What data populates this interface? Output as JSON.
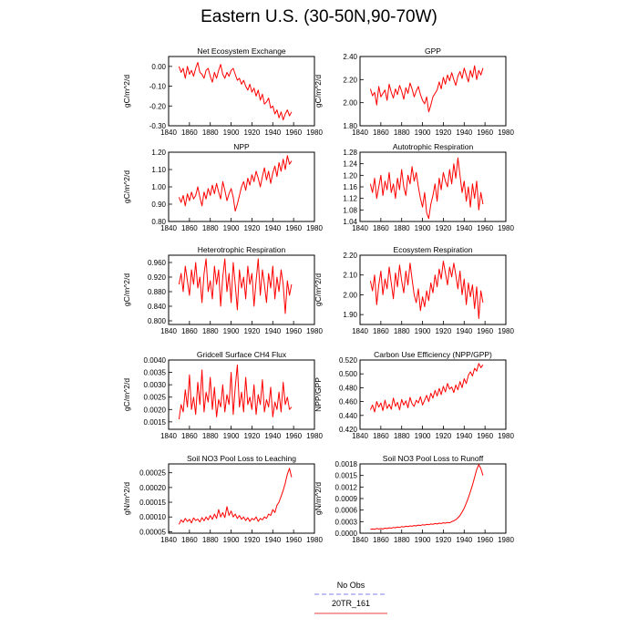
{
  "title": "Eastern U.S. (30-50N,90-70W)",
  "legend": {
    "entries": [
      {
        "label": "No Obs",
        "color": "#9999ee",
        "style": "dashed"
      },
      {
        "label": "20TR_161",
        "color": "#ee6666",
        "style": "solid"
      }
    ]
  },
  "colors": {
    "series": "#ff0000",
    "axis": "#000000"
  },
  "chart_data": [
    {
      "type": "line",
      "title": "Net Ecosystem Exchange",
      "ylabel": "gC/m^2/d",
      "xlabel": "",
      "xlim": [
        1840,
        1980
      ],
      "ylim": [
        -0.3,
        0.05
      ],
      "xticks": [
        1840,
        1860,
        1880,
        1900,
        1920,
        1940,
        1960,
        1980
      ],
      "yticks": [
        -0.3,
        -0.2,
        -0.1,
        0.0
      ],
      "ytick_labels": [
        "-0.30",
        "-0.20",
        "-0.10",
        "0.00"
      ],
      "series": [
        {
          "x_start": 1850,
          "x_step": 2,
          "values": [
            0.0,
            -0.03,
            -0.01,
            -0.06,
            0.0,
            -0.04,
            -0.02,
            -0.05,
            -0.01,
            0.02,
            -0.03,
            -0.04,
            -0.06,
            -0.02,
            -0.01,
            -0.05,
            -0.08,
            -0.03,
            -0.06,
            -0.02,
            0.01,
            -0.04,
            -0.06,
            -0.03,
            -0.05,
            -0.02,
            -0.01,
            -0.04,
            -0.07,
            -0.06,
            -0.09,
            -0.07,
            -0.1,
            -0.12,
            -0.09,
            -0.13,
            -0.11,
            -0.15,
            -0.12,
            -0.17,
            -0.14,
            -0.19,
            -0.18,
            -0.16,
            -0.21,
            -0.2,
            -0.24,
            -0.22,
            -0.26,
            -0.23,
            -0.27,
            -0.24,
            -0.22,
            -0.25,
            -0.23
          ]
        }
      ]
    },
    {
      "type": "line",
      "title": "GPP",
      "ylabel": "gC/m^2/d",
      "xlabel": "",
      "xlim": [
        1840,
        1980
      ],
      "ylim": [
        1.8,
        2.4
      ],
      "xticks": [
        1840,
        1860,
        1880,
        1900,
        1920,
        1940,
        1960,
        1980
      ],
      "yticks": [
        1.8,
        2.0,
        2.2,
        2.4
      ],
      "ytick_labels": [
        "1.80",
        "2.00",
        "2.20",
        "2.40"
      ],
      "series": [
        {
          "x_start": 1850,
          "x_step": 2,
          "values": [
            2.12,
            2.06,
            2.09,
            1.98,
            2.14,
            2.05,
            2.08,
            2.11,
            2.02,
            2.16,
            2.09,
            2.04,
            2.12,
            2.07,
            2.15,
            2.1,
            2.03,
            2.13,
            2.08,
            2.17,
            2.12,
            2.05,
            2.1,
            2.14,
            2.07,
            2.02,
            1.99,
            2.05,
            1.92,
            1.98,
            2.05,
            2.08,
            2.11,
            2.18,
            2.12,
            2.22,
            2.16,
            2.24,
            2.19,
            2.26,
            2.2,
            2.15,
            2.23,
            2.27,
            2.21,
            2.3,
            2.24,
            2.18,
            2.28,
            2.22,
            2.32,
            2.2,
            2.28,
            2.24,
            2.3
          ]
        }
      ]
    },
    {
      "type": "line",
      "title": "NPP",
      "ylabel": "gC/m^2/d",
      "xlabel": "",
      "xlim": [
        1840,
        1980
      ],
      "ylim": [
        0.8,
        1.2
      ],
      "xticks": [
        1840,
        1860,
        1880,
        1900,
        1920,
        1940,
        1960,
        1980
      ],
      "yticks": [
        0.8,
        0.9,
        1.0,
        1.1,
        1.2
      ],
      "ytick_labels": [
        "0.80",
        "0.90",
        "1.00",
        "1.10",
        "1.20"
      ],
      "series": [
        {
          "x_start": 1850,
          "x_step": 2,
          "values": [
            0.94,
            0.91,
            0.95,
            0.89,
            0.96,
            0.92,
            0.97,
            0.93,
            0.95,
            1.0,
            0.94,
            0.89,
            0.97,
            0.93,
            0.99,
            0.95,
            1.01,
            0.96,
            1.02,
            0.97,
            0.93,
            1.03,
            0.98,
            0.92,
            0.96,
            0.99,
            0.94,
            0.86,
            0.9,
            0.95,
            1.0,
            1.03,
            0.98,
            1.05,
            1.01,
            1.07,
            1.03,
            1.09,
            1.05,
            1.0,
            1.06,
            1.11,
            1.04,
            1.09,
            1.02,
            1.08,
            1.12,
            1.06,
            1.14,
            1.09,
            1.16,
            1.1,
            1.18,
            1.13,
            1.15
          ]
        }
      ]
    },
    {
      "type": "line",
      "title": "Autotrophic Respiration",
      "ylabel": "",
      "xlabel": "",
      "xlim": [
        1840,
        1980
      ],
      "ylim": [
        1.04,
        1.28
      ],
      "xticks": [
        1840,
        1860,
        1880,
        1900,
        1920,
        1940,
        1960,
        1980
      ],
      "yticks": [
        1.04,
        1.08,
        1.12,
        1.16,
        1.2,
        1.24,
        1.28
      ],
      "ytick_labels": [
        "1.04",
        "1.08",
        "1.12",
        "1.16",
        "1.20",
        "1.24",
        "1.28"
      ],
      "series": [
        {
          "x_start": 1850,
          "x_step": 2,
          "values": [
            1.17,
            1.14,
            1.19,
            1.12,
            1.16,
            1.2,
            1.13,
            1.18,
            1.15,
            1.21,
            1.14,
            1.17,
            1.12,
            1.19,
            1.15,
            1.22,
            1.16,
            1.13,
            1.2,
            1.17,
            1.23,
            1.18,
            1.21,
            1.16,
            1.12,
            1.09,
            1.14,
            1.07,
            1.05,
            1.1,
            1.13,
            1.17,
            1.11,
            1.19,
            1.15,
            1.21,
            1.18,
            1.16,
            1.22,
            1.17,
            1.24,
            1.19,
            1.26,
            1.2,
            1.14,
            1.18,
            1.11,
            1.16,
            1.09,
            1.17,
            1.12,
            1.18,
            1.08,
            1.14,
            1.1
          ]
        }
      ]
    },
    {
      "type": "line",
      "title": "Heterotrophic Respiration",
      "ylabel": "gC/m^2/d",
      "xlabel": "",
      "xlim": [
        1840,
        1980
      ],
      "ylim": [
        0.79,
        0.98
      ],
      "xticks": [
        1840,
        1860,
        1880,
        1900,
        1920,
        1940,
        1960,
        1980
      ],
      "yticks": [
        0.8,
        0.84,
        0.88,
        0.92,
        0.96
      ],
      "ytick_labels": [
        "0.800",
        "0.840",
        "0.880",
        "0.920",
        "0.960"
      ],
      "series": [
        {
          "x_start": 1850,
          "x_step": 2,
          "values": [
            0.9,
            0.93,
            0.88,
            0.95,
            0.91,
            0.87,
            0.94,
            0.9,
            0.96,
            0.89,
            0.92,
            0.85,
            0.93,
            0.97,
            0.88,
            0.91,
            0.86,
            0.95,
            0.9,
            0.94,
            0.84,
            0.92,
            0.97,
            0.88,
            0.93,
            0.85,
            0.96,
            0.9,
            0.83,
            0.94,
            0.89,
            0.92,
            0.86,
            0.95,
            0.9,
            0.93,
            0.84,
            0.91,
            0.97,
            0.87,
            0.94,
            0.9,
            0.85,
            0.93,
            0.89,
            0.95,
            0.86,
            0.92,
            0.88,
            0.94,
            0.9,
            0.82,
            0.91,
            0.87,
            0.9
          ]
        }
      ]
    },
    {
      "type": "line",
      "title": "Ecosystem Respiration",
      "ylabel": "gC/m^2/d",
      "xlabel": "",
      "xlim": [
        1840,
        1980
      ],
      "ylim": [
        1.85,
        2.2
      ],
      "xticks": [
        1840,
        1860,
        1880,
        1900,
        1920,
        1940,
        1960,
        1980
      ],
      "yticks": [
        1.9,
        2.0,
        2.1,
        2.2
      ],
      "ytick_labels": [
        "1.90",
        "2.00",
        "2.10",
        "2.20"
      ],
      "series": [
        {
          "x_start": 1850,
          "x_step": 2,
          "values": [
            2.07,
            2.02,
            2.1,
            1.95,
            2.05,
            2.12,
            2.0,
            2.08,
            2.03,
            2.14,
            2.06,
            1.98,
            2.11,
            2.04,
            2.15,
            2.07,
            2.01,
            2.12,
            2.05,
            2.16,
            2.08,
            2.0,
            1.96,
            2.03,
            1.92,
            1.99,
            1.94,
            2.02,
            1.97,
            2.06,
            2.01,
            2.1,
            2.04,
            2.13,
            2.08,
            2.17,
            2.11,
            2.05,
            2.14,
            2.09,
            2.16,
            2.1,
            2.03,
            2.12,
            2.0,
            2.08,
            1.95,
            2.06,
            1.99,
            2.05,
            1.93,
            2.04,
            1.88,
            2.02,
            1.96
          ]
        }
      ]
    },
    {
      "type": "line",
      "title": "Gridcell Surface CH4 Flux",
      "ylabel": "gC/m^2/d",
      "xlabel": "",
      "xlim": [
        1840,
        1980
      ],
      "ylim": [
        0.0012,
        0.004
      ],
      "xticks": [
        1840,
        1860,
        1880,
        1900,
        1920,
        1940,
        1960,
        1980
      ],
      "yticks": [
        0.0015,
        0.002,
        0.0025,
        0.003,
        0.0035,
        0.004
      ],
      "ytick_labels": [
        "0.0015",
        "0.0020",
        "0.0025",
        "0.0030",
        "0.0035",
        "0.0040"
      ],
      "series": [
        {
          "x_start": 1850,
          "x_step": 2,
          "values": [
            0.0016,
            0.0022,
            0.0019,
            0.0028,
            0.0021,
            0.0034,
            0.002,
            0.0025,
            0.0018,
            0.0031,
            0.0022,
            0.0036,
            0.0019,
            0.0027,
            0.0023,
            0.0033,
            0.002,
            0.0029,
            0.0017,
            0.0024,
            0.0021,
            0.003,
            0.0019,
            0.0026,
            0.0022,
            0.0035,
            0.0018,
            0.0029,
            0.0038,
            0.0021,
            0.0027,
            0.0019,
            0.0033,
            0.0022,
            0.0025,
            0.002,
            0.003,
            0.0018,
            0.0026,
            0.0022,
            0.0032,
            0.0019,
            0.0024,
            0.0021,
            0.0029,
            0.0017,
            0.0023,
            0.002,
            0.0027,
            0.0019,
            0.0031,
            0.0022,
            0.0025,
            0.002,
            0.0021
          ]
        }
      ]
    },
    {
      "type": "line",
      "title": "Carbon Use Efficiency (NPP/GPP)",
      "ylabel": "NPP/GPP",
      "xlabel": "",
      "xlim": [
        1840,
        1980
      ],
      "ylim": [
        0.42,
        0.52
      ],
      "xticks": [
        1840,
        1860,
        1880,
        1900,
        1920,
        1940,
        1960,
        1980
      ],
      "yticks": [
        0.42,
        0.44,
        0.46,
        0.48,
        0.5,
        0.52
      ],
      "ytick_labels": [
        "0.420",
        "0.440",
        "0.460",
        "0.480",
        "0.500",
        "0.520"
      ],
      "series": [
        {
          "x_start": 1850,
          "x_step": 2,
          "values": [
            0.448,
            0.455,
            0.445,
            0.46,
            0.452,
            0.458,
            0.447,
            0.462,
            0.45,
            0.456,
            0.449,
            0.465,
            0.453,
            0.459,
            0.448,
            0.463,
            0.455,
            0.461,
            0.451,
            0.466,
            0.457,
            0.453,
            0.462,
            0.458,
            0.467,
            0.455,
            0.462,
            0.469,
            0.46,
            0.472,
            0.465,
            0.476,
            0.468,
            0.479,
            0.47,
            0.482,
            0.474,
            0.486,
            0.478,
            0.481,
            0.473,
            0.484,
            0.477,
            0.489,
            0.48,
            0.493,
            0.486,
            0.498,
            0.503,
            0.497,
            0.508,
            0.504,
            0.515,
            0.509,
            0.513
          ]
        }
      ]
    },
    {
      "type": "line",
      "title": "Soil NO3 Pool Loss to Leaching",
      "ylabel": "gN/m^2/d",
      "xlabel": "",
      "xlim": [
        1840,
        1980
      ],
      "ylim": [
        4.5e-05,
        0.00028
      ],
      "xticks": [
        1840,
        1860,
        1880,
        1900,
        1920,
        1940,
        1960,
        1980
      ],
      "yticks": [
        5e-05,
        0.0001,
        0.00015,
        0.0002,
        0.00025
      ],
      "ytick_labels": [
        "0.00005",
        "0.00010",
        "0.00015",
        "0.00020",
        "0.00025"
      ],
      "series": [
        {
          "x_start": 1850,
          "x_step": 2,
          "values": [
            7.5e-05,
            9e-05,
            8.2e-05,
            9.5e-05,
            8.5e-05,
            9.2e-05,
            8e-05,
            9.7e-05,
            8.8e-05,
            9.3e-05,
            8.3e-05,
            9.8e-05,
            8.7e-05,
            0.0001,
            9e-05,
            0.000105,
            9.2e-05,
            0.00011,
            9.5e-05,
            0.000125,
            0.0001,
            0.000115,
            9.8e-05,
            0.000135,
            0.000105,
            0.00012,
            0.0001,
            0.00011,
            9.5e-05,
            0.000105,
            9.2e-05,
            0.0001,
            8.8e-05,
            9.8e-05,
            8.5e-05,
            9.5e-05,
            9e-05,
            0.0001,
            8.5e-05,
            9.5e-05,
            9e-05,
            0.0001,
            9.5e-05,
            0.00011,
            0.000105,
            0.000125,
            0.000115,
            0.00014,
            0.00015,
            0.00017,
            0.00019,
            0.000215,
            0.000245,
            0.000265,
            0.000235
          ]
        }
      ]
    },
    {
      "type": "line",
      "title": "Soil NO3 Pool Loss to Runoff",
      "ylabel": "gN/m^2/d",
      "xlabel": "",
      "xlim": [
        1840,
        1980
      ],
      "ylim": [
        0.0,
        0.0018
      ],
      "xticks": [
        1840,
        1860,
        1880,
        1900,
        1920,
        1940,
        1960,
        1980
      ],
      "yticks": [
        0.0,
        0.0003,
        0.0006,
        0.0009,
        0.0012,
        0.0015,
        0.0018
      ],
      "ytick_labels": [
        "0.0000",
        "0.0003",
        "0.0006",
        "0.0009",
        "0.0012",
        "0.0015",
        "0.0018"
      ],
      "series": [
        {
          "x_start": 1850,
          "x_step": 2,
          "values": [
            0.0001,
            0.00011,
            0.0001,
            0.00012,
            0.00011,
            0.00012,
            0.00011,
            0.00013,
            0.00012,
            0.00014,
            0.00013,
            0.00015,
            0.00014,
            0.00016,
            0.00015,
            0.00017,
            0.00016,
            0.00018,
            0.00017,
            0.00019,
            0.00018,
            0.0002,
            0.00019,
            0.00021,
            0.0002,
            0.00022,
            0.00021,
            0.00023,
            0.00022,
            0.00024,
            0.00023,
            0.00025,
            0.00024,
            0.00026,
            0.00025,
            0.00027,
            0.00026,
            0.00028,
            0.00027,
            0.0003,
            0.00032,
            0.00035,
            0.0004,
            0.00046,
            0.00055,
            0.00065,
            0.00078,
            0.00092,
            0.00108,
            0.00125,
            0.00145,
            0.00165,
            0.00178,
            0.00168,
            0.0015
          ]
        }
      ]
    }
  ]
}
